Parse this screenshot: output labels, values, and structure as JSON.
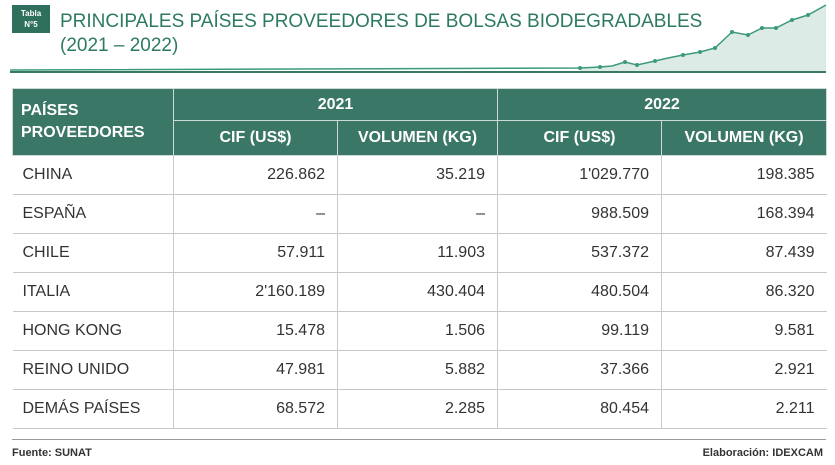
{
  "header": {
    "tag": [
      "Tabla",
      "N°5"
    ],
    "title": "PRINCIPALES PAÍSES PROVEEDORES DE BOLSAS BIODEGRADABLES",
    "subtitle": "(2021 – 2022)"
  },
  "table": {
    "corner": "PAÍSES PROVEEDORES",
    "years": [
      "2021",
      "2022"
    ],
    "columns": [
      "CIF (US$)",
      "VOLUMEN (KG)",
      "CIF (US$)",
      "VOLUMEN (KG)"
    ],
    "rows": [
      [
        "CHINA",
        "226.862",
        "35.219",
        "1'029.770",
        "198.385"
      ],
      [
        "ESPAÑA",
        "–",
        "–",
        "988.509",
        "168.394"
      ],
      [
        "CHILE",
        "57.911",
        "11.903",
        "537.372",
        "87.439"
      ],
      [
        "ITALIA",
        "2'160.189",
        "430.404",
        "480.504",
        "86.320"
      ],
      [
        "HONG KONG",
        "15.478",
        "1.506",
        "99.119",
        "9.581"
      ],
      [
        "REINO UNIDO",
        "47.981",
        "5.882",
        "37.366",
        "2.921"
      ],
      [
        "DEMÁS PAÍSES",
        "68.572",
        "2.285",
        "80.454",
        "2.211"
      ]
    ]
  },
  "footer": {
    "source": "Fuente: SUNAT",
    "credit": "Elaboración: IDEXCAM"
  }
}
